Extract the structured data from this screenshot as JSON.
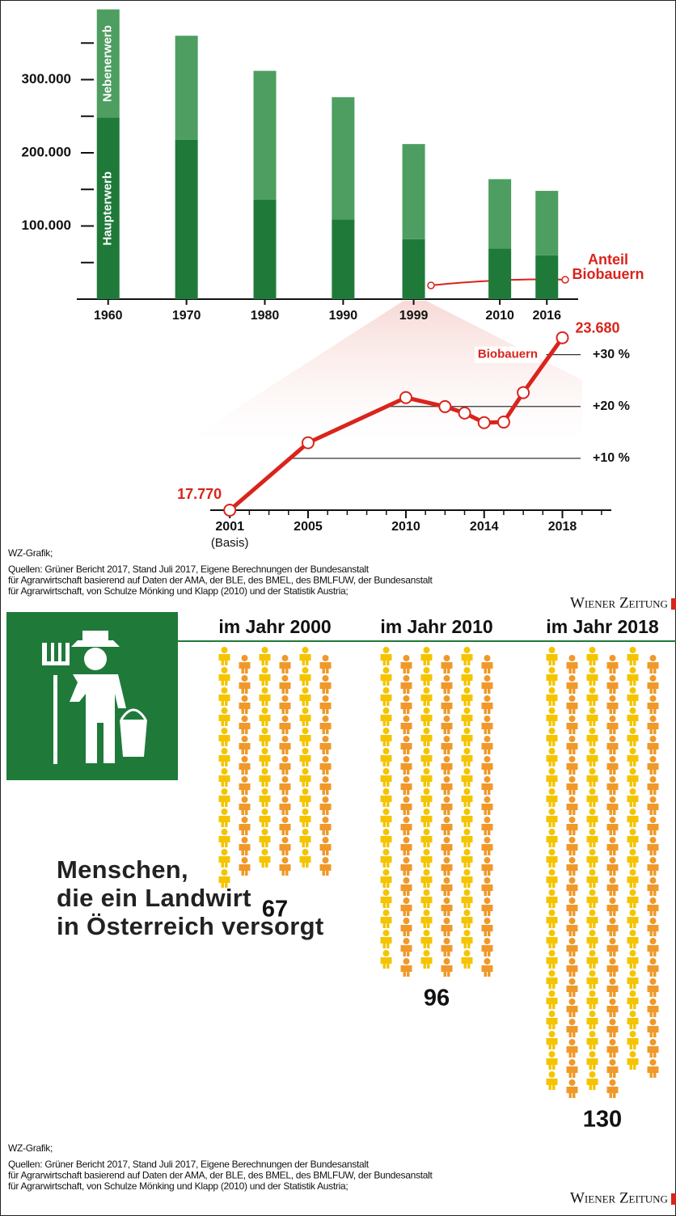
{
  "chart_data": [
    {
      "type": "bar",
      "stacked": true,
      "x": [
        1960,
        1970,
        1980,
        1990,
        1999,
        2010,
        2016
      ],
      "series": [
        {
          "name": "Haupterwerb",
          "color": "#1f7a3a",
          "values": [
            248000,
            218000,
            136000,
            109000,
            82000,
            69000,
            60000
          ]
        },
        {
          "name": "Nebenerwerb",
          "color": "#4d9e60",
          "values": [
            148000,
            142000,
            176000,
            167000,
            130000,
            95000,
            88000
          ]
        }
      ],
      "xlim": [
        1956,
        2020
      ],
      "ylim": [
        0,
        400000
      ],
      "yticks": [
        {
          "value": 100000,
          "label": "100.000"
        },
        {
          "value": 200000,
          "label": "200.000"
        },
        {
          "value": 300000,
          "label": "300.000"
        }
      ],
      "minor_yticks": [
        50000,
        150000,
        250000,
        350000
      ],
      "annotation": [
        "Anteil",
        "Biobauern"
      ],
      "annotation_color": "#d9241c"
    },
    {
      "type": "line",
      "x": [
        2001,
        2005,
        2010,
        2012,
        2013,
        2014,
        2015,
        2016,
        2018
      ],
      "series": [
        {
          "name": "Biobauern",
          "color": "#d9241c",
          "values": [
            17770,
            20080,
            21630,
            21320,
            21100,
            20770,
            20790,
            21800,
            23680
          ],
          "value_labels": [
            "17.770",
            null,
            null,
            null,
            null,
            null,
            null,
            null,
            "23.680"
          ]
        }
      ],
      "xlim": [
        2000,
        2020.5
      ],
      "ylim": [
        17770,
        24200
      ],
      "xticks": [
        2001,
        2005,
        2010,
        2014,
        2018
      ],
      "minor_xticks": [
        2002,
        2003,
        2004,
        2006,
        2007,
        2008,
        2009,
        2011,
        2012,
        2013,
        2015,
        2016,
        2017,
        2019,
        2020
      ],
      "yticks": [
        {
          "value": 19547,
          "label": "+10 %"
        },
        {
          "value": 21324,
          "label": "+20 %"
        },
        {
          "value": 23101,
          "label": "+30 %"
        }
      ],
      "x_note": "(Basis)",
      "source": {
        "credit": "WZ-Grafik;",
        "lines": [
          "Quellen: Grüner Bericht 2017, Stand Juli 2017, Eigene Berechnungen der Bundesanstalt",
          "für Agrarwirtschaft basierend auf Daten der AMA, der BLE, des BMEL, des BMLFUW, der Bundesanstalt",
          "für Agrarwirtschaft, von Schulze Mönking und Klapp (2010) und der Statistik Austria;"
        ]
      },
      "brand": "Wiener Zeitung"
    },
    {
      "type": "pictogram",
      "categories": [
        "im Jahr 2000",
        "im Jahr 2010",
        "im Jahr 2018"
      ],
      "values": [
        67,
        96,
        130
      ],
      "colors": [
        "#f5c400",
        "#f0992a"
      ],
      "title": "Menschen,\ndie ein Landwirt\nin Österreich versorgt",
      "source": {
        "credit": "WZ-Grafik;",
        "lines": [
          "Quellen: Grüner Bericht 2017, Stand Juli 2017, Eigene Berechnungen der Bundesanstalt",
          "für Agrarwirtschaft basierend auf Daten der AMA, der BLE, des BMEL, des BMLFUW, der Bundesanstalt",
          "für Agrarwirtschaft, von Schulze Mönking und Klapp (2010) und der Statistik Austria;"
        ]
      },
      "brand": "Wiener Zeitung"
    }
  ]
}
